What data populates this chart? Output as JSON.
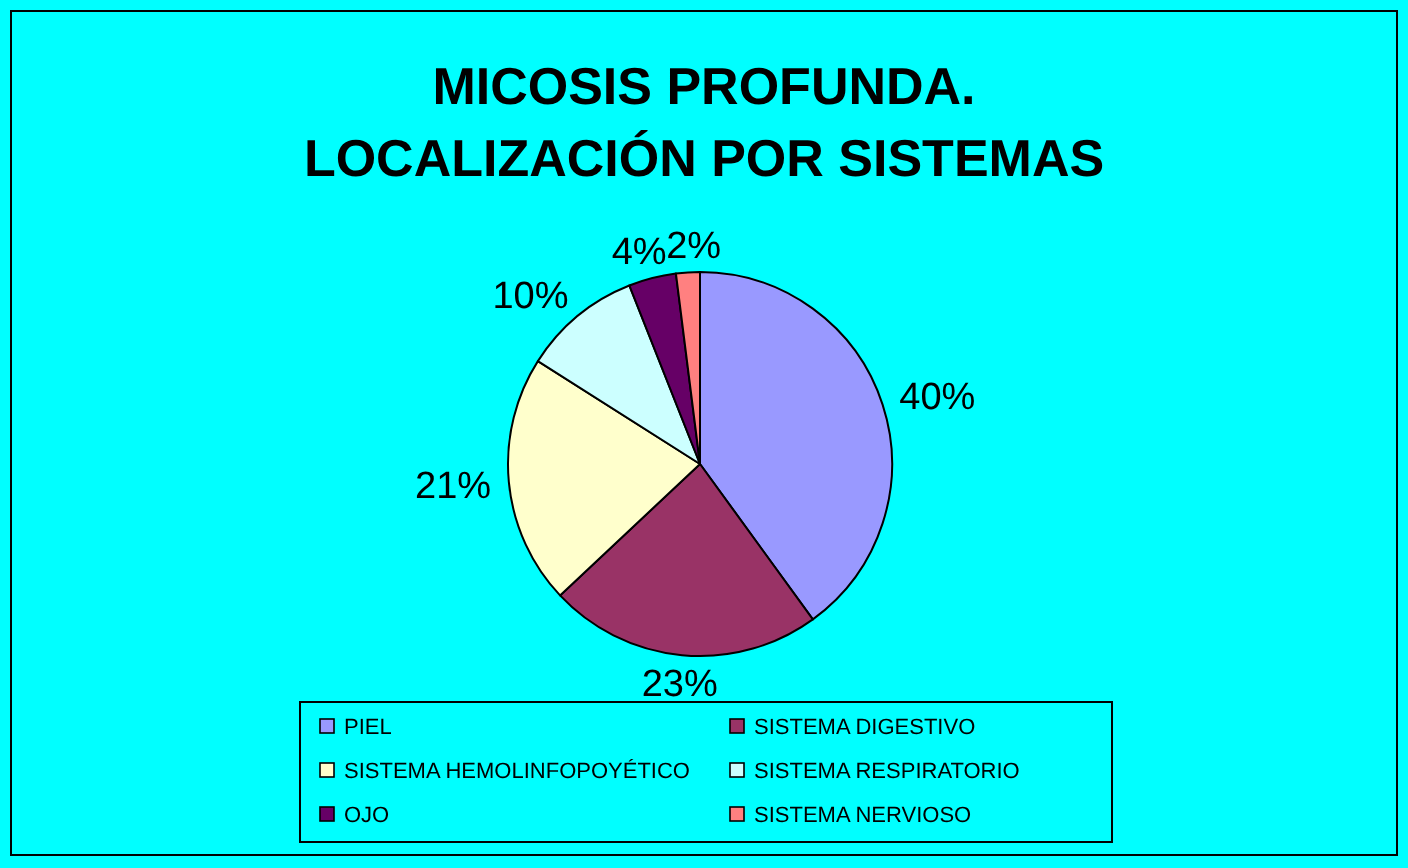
{
  "chart_data": {
    "type": "pie",
    "title": "MICOSIS PROFUNDA.\nLOCALIZACIÓN POR SISTEMAS",
    "categories": [
      "PIEL",
      "SISTEMA DIGESTIVO",
      "SISTEMA HEMOLINFOPOYÉTICO",
      "SISTEMA RESPIRATORIO",
      "OJO",
      "SISTEMA NERVIOSO"
    ],
    "values": [
      40,
      23,
      21,
      10,
      4,
      2
    ],
    "colors": [
      "#9999ff",
      "#993366",
      "#ffffcc",
      "#ccffff",
      "#660066",
      "#ff8080"
    ],
    "value_labels": [
      "40%",
      "23%",
      "21%",
      "10%",
      "4%",
      "2%"
    ],
    "legend": "bottom"
  }
}
